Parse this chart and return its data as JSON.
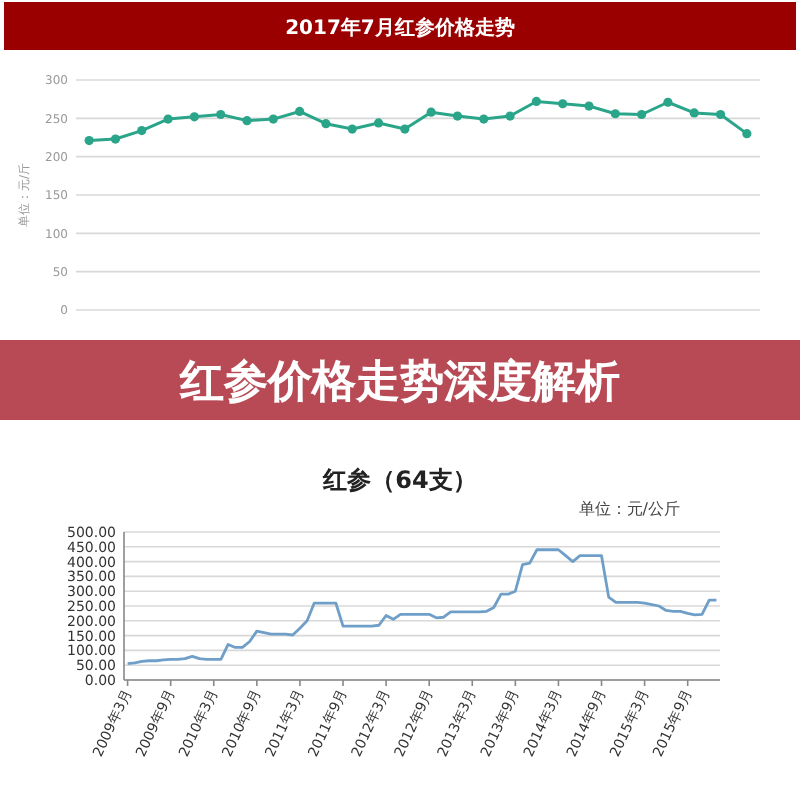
{
  "chart_data": [
    {
      "type": "line",
      "title": "2017年7月红参价格走势",
      "ylabel": "单位：元/斤",
      "categories": [
        null,
        null,
        null,
        null,
        null,
        null,
        null,
        null,
        null,
        null,
        null,
        null,
        null,
        null,
        null,
        null,
        null,
        null,
        null,
        null,
        null,
        null,
        null,
        null,
        null,
        null
      ],
      "series": [
        {
          "color": "#2aa58a",
          "values": [
            221,
            223,
            234,
            249,
            252,
            255,
            247,
            249,
            259,
            243,
            236,
            244,
            236,
            258,
            253,
            249,
            253,
            272,
            269,
            266,
            256,
            255,
            271,
            257,
            255,
            230
          ]
        }
      ],
      "ylim": [
        0,
        300
      ],
      "yticks": [
        0,
        50,
        100,
        150,
        200,
        250,
        300
      ],
      "grid": "y",
      "marker": "circle",
      "tick_labels": "y"
    },
    {
      "type": "other",
      "title": "红参价格走势深度解析"
    },
    {
      "type": "line",
      "title": "红参（64支）",
      "annotations": [
        "单位：元/公斤"
      ],
      "categories": [
        "2009年3月",
        null,
        null,
        null,
        null,
        null,
        "2009年9月",
        null,
        null,
        null,
        null,
        null,
        "2010年3月",
        null,
        null,
        null,
        null,
        null,
        "2010年9月",
        null,
        null,
        null,
        null,
        null,
        "2011年3月",
        null,
        null,
        null,
        null,
        null,
        "2011年9月",
        null,
        null,
        null,
        null,
        null,
        "2012年3月",
        null,
        null,
        null,
        null,
        null,
        "2012年9月",
        null,
        null,
        null,
        null,
        null,
        "2013年3月",
        null,
        null,
        null,
        null,
        null,
        "2013年9月",
        null,
        null,
        null,
        null,
        null,
        "2014年3月",
        null,
        null,
        null,
        null,
        null,
        "2014年9月",
        null,
        null,
        null,
        null,
        null,
        "2015年3月",
        null,
        null,
        null,
        null,
        null,
        "2015年9月",
        null,
        null,
        null,
        null
      ],
      "series": [
        {
          "color": "#6f9fc8",
          "values": [
            55,
            58,
            63,
            65,
            65,
            68,
            70,
            70,
            72,
            80,
            72,
            70,
            70,
            70,
            120,
            110,
            110,
            130,
            165,
            160,
            155,
            155,
            155,
            152,
            175,
            200,
            260,
            260,
            260,
            260,
            182,
            182,
            182,
            182,
            182,
            185,
            218,
            205,
            222,
            222,
            222,
            222,
            222,
            210,
            212,
            230,
            230,
            230,
            230,
            230,
            232,
            245,
            290,
            290,
            300,
            390,
            395,
            440,
            440,
            440,
            440,
            420,
            400,
            420,
            420,
            420,
            420,
            280,
            262,
            262,
            262,
            262,
            260,
            255,
            250,
            235,
            232,
            232,
            225,
            220,
            222,
            270,
            270
          ]
        }
      ],
      "ylim": [
        0,
        500
      ],
      "yticks": [
        {
          "value": 0,
          "label": "0.00"
        },
        {
          "value": 50,
          "label": "50.00"
        },
        {
          "value": 100,
          "label": "100.00"
        },
        {
          "value": 150,
          "label": "150.00"
        },
        {
          "value": 200,
          "label": "200.00"
        },
        {
          "value": 250,
          "label": "250.00"
        },
        {
          "value": 300,
          "label": "300.00"
        },
        {
          "value": 350,
          "label": "350.00"
        },
        {
          "value": 400,
          "label": "400.00"
        },
        {
          "value": 450,
          "label": "450.00"
        },
        {
          "value": 500,
          "label": "500.00"
        }
      ],
      "grid": "y"
    }
  ]
}
